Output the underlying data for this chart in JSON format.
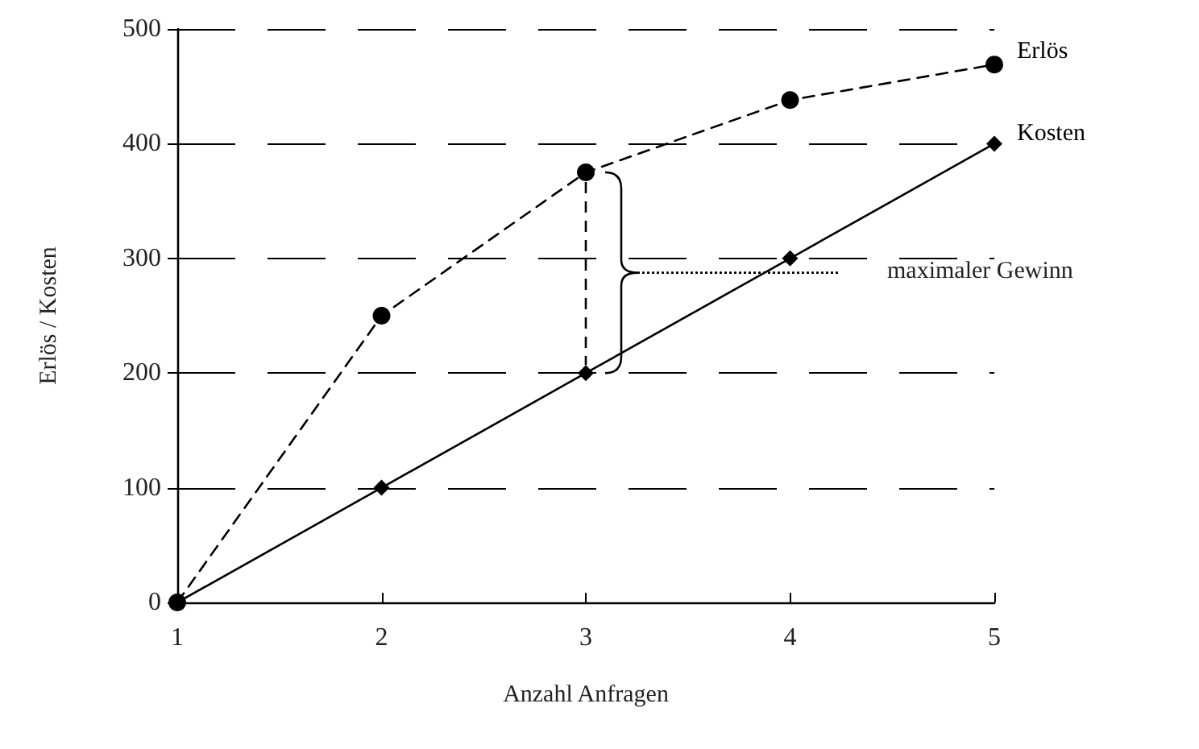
{
  "chart_data": {
    "type": "line",
    "xlabel": "Anzahl Anfragen",
    "ylabel": "Erlös / Kosten",
    "x": [
      1,
      2,
      3,
      4,
      5
    ],
    "series": [
      {
        "name": "Erlös",
        "color": "#000000",
        "values": [
          0,
          250,
          375,
          438,
          469
        ],
        "marker": "circle",
        "line_style": "dashed"
      },
      {
        "name": "Kosten",
        "color": "#000000",
        "values": [
          0,
          100,
          200,
          300,
          400
        ],
        "marker": "diamond",
        "line_style": "solid"
      }
    ],
    "xlim": [
      1,
      5
    ],
    "xticks": [
      1,
      2,
      3,
      4,
      5
    ],
    "ylim": [
      0,
      500
    ],
    "yticks": [
      0,
      100,
      200,
      300,
      400,
      500
    ],
    "grid": "y",
    "legend": false,
    "annotations": [
      "maximaler Gewinn"
    ]
  }
}
